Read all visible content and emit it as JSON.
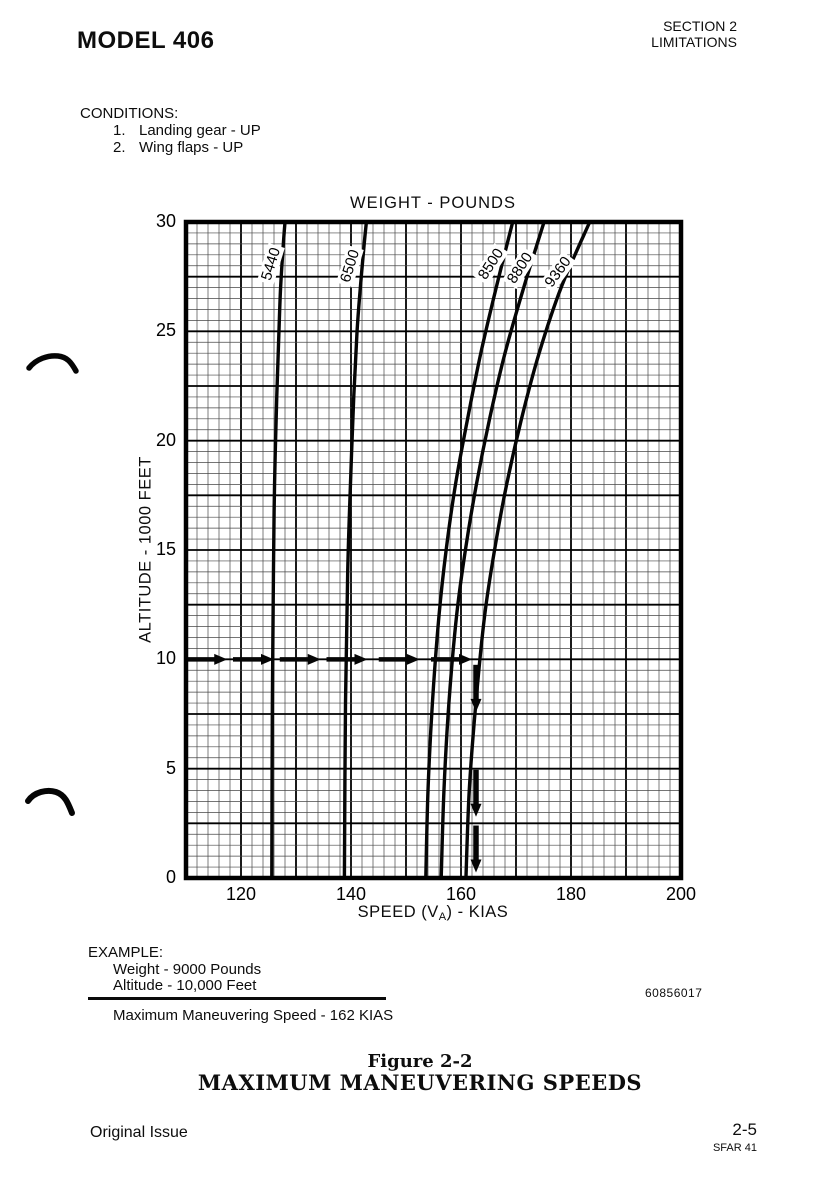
{
  "page": {
    "model": "MODEL 406",
    "section_line1": "SECTION 2",
    "section_line2": "LIMITATIONS",
    "conditions_title": "CONDITIONS:",
    "conditions": [
      {
        "num": "1.",
        "text": "Landing gear - UP"
      },
      {
        "num": "2.",
        "text": "Wing flaps - UP"
      }
    ],
    "example": {
      "title": "EXAMPLE:",
      "line1": "Weight - 9000 Pounds",
      "line2": "Altitude - 10,000 Feet",
      "result": "Maximum Maneuvering Speed - 162 KIAS"
    },
    "part_number": "60856017",
    "figure_label": "Figure 2-2",
    "figure_title": "MAXIMUM MANEUVERING SPEEDS",
    "footer_left": "Original Issue",
    "footer_page": "2-5",
    "footer_sub": "SFAR 41"
  },
  "chart_data": {
    "type": "line",
    "title": "WEIGHT - POUNDS",
    "ylabel": "ALTITUDE - 1000 FEET",
    "xlabel_parts": {
      "pre": "SPEED (V",
      "sub": "A",
      "post": ") - KIAS"
    },
    "xlim": [
      110,
      200
    ],
    "ylim": [
      0,
      30
    ],
    "x_ticks": [
      120,
      140,
      160,
      180,
      200
    ],
    "y_ticks": [
      0,
      5,
      10,
      15,
      20,
      25,
      30
    ],
    "x_minor_step": 2,
    "x_major_step": 10,
    "y_minor_step": 0.5,
    "y_major_step": 2.5,
    "grid": "on",
    "line_color": "#050505",
    "series": [
      {
        "name": "5440",
        "label_pos": [
          125.4,
          28.1
        ],
        "label_rot": -73,
        "points": [
          [
            0,
            125.6
          ],
          [
            8,
            125.7
          ],
          [
            14,
            125.9
          ],
          [
            18,
            126.1
          ],
          [
            22,
            126.5
          ],
          [
            25,
            126.9
          ],
          [
            27,
            127.2
          ],
          [
            29,
            127.7
          ],
          [
            30,
            128.0
          ]
        ]
      },
      {
        "name": "6500",
        "label_pos": [
          139.8,
          28.0
        ],
        "label_rot": -73,
        "points": [
          [
            0,
            138.8
          ],
          [
            8,
            139.0
          ],
          [
            14,
            139.4
          ],
          [
            18,
            139.9
          ],
          [
            22,
            140.5
          ],
          [
            25,
            141.1
          ],
          [
            27,
            141.7
          ],
          [
            29,
            142.4
          ],
          [
            30,
            142.8
          ]
        ]
      },
      {
        "name": "8500",
        "label_pos": [
          165.5,
          28.1
        ],
        "label_rot": -57,
        "points": [
          [
            0,
            153.6
          ],
          [
            4,
            154.0
          ],
          [
            8,
            154.8
          ],
          [
            12,
            156.0
          ],
          [
            15,
            157.3
          ],
          [
            18,
            159.0
          ],
          [
            21,
            161.2
          ],
          [
            24,
            163.6
          ],
          [
            27,
            166.4
          ],
          [
            30,
            169.4
          ]
        ]
      },
      {
        "name": "8800",
        "label_pos": [
          170.8,
          27.9
        ],
        "label_rot": -57,
        "points": [
          [
            0,
            156.4
          ],
          [
            4,
            156.9
          ],
          [
            8,
            157.8
          ],
          [
            12,
            159.2
          ],
          [
            15,
            160.8
          ],
          [
            18,
            162.8
          ],
          [
            21,
            165.2
          ],
          [
            24,
            168.0
          ],
          [
            27,
            171.4
          ],
          [
            30,
            175.1
          ]
        ]
      },
      {
        "name": "9360",
        "label_pos": [
          177.6,
          27.7
        ],
        "label_rot": -54,
        "points": [
          [
            0,
            160.9
          ],
          [
            4,
            161.5
          ],
          [
            8,
            162.7
          ],
          [
            12,
            164.3
          ],
          [
            15,
            166.1
          ],
          [
            18,
            168.3
          ],
          [
            21,
            171.0
          ],
          [
            24,
            174.2
          ],
          [
            27,
            178.2
          ],
          [
            30,
            183.4
          ]
        ]
      }
    ],
    "example_path": {
      "altitude": 10,
      "speed": 162,
      "h_arrow_tips": [
        117.5,
        126,
        134.5,
        143,
        152.5,
        162
      ],
      "v_arrow_tips": [
        7.6,
        2.8,
        0.25
      ]
    }
  }
}
